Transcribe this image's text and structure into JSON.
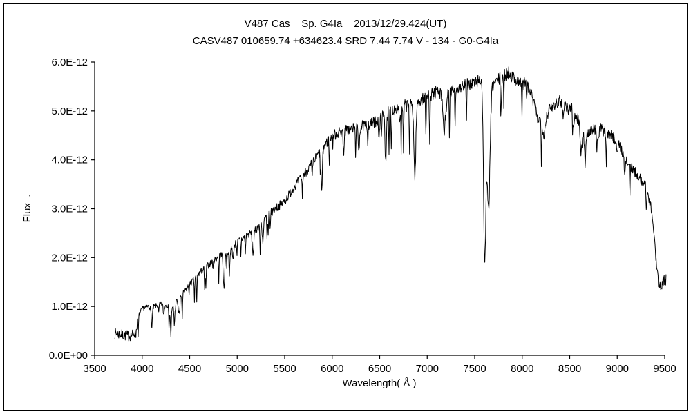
{
  "header": {
    "title": "V487 Cas    Sp. G4Ia    2013/12/29.424(UT)",
    "subtitle": "CASV487 010659.74 +634623.4 SRD 7.44 7.74 V - 134 - G0-G4Ia"
  },
  "chart_data": {
    "type": "line",
    "title": "V487 Cas    Sp. G4Ia    2013/12/29.424(UT)",
    "subtitle": "CASV487 010659.74 +634623.4 SRD 7.44 7.74 V - 134 - G0-G4Ia",
    "xlabel": "Wavelength( Å )",
    "ylabel": "Flux  .",
    "xlim": [
      3500,
      9500
    ],
    "ylim": [
      0,
      6e-12
    ],
    "grid": false,
    "legend": "none",
    "line_color": "#000000",
    "background": "#ffffff",
    "x_ticks": [
      3500,
      4000,
      4500,
      5000,
      5500,
      6000,
      6500,
      7000,
      7500,
      8000,
      8500,
      9000,
      9500
    ],
    "y_ticks": [
      [
        0,
        "0.0E+00"
      ],
      [
        1,
        "1.0E-12"
      ],
      [
        2,
        "2.0E-12"
      ],
      [
        3,
        "3.0E-12"
      ],
      [
        4,
        "4.0E-12"
      ],
      [
        5,
        "5.0E-12"
      ],
      [
        6,
        "6.0E-12"
      ]
    ],
    "flux_unit_scale": "values below are in units of 1E-12, matching the y-axis labels",
    "x_start": 3710,
    "x_end": 9520,
    "step": 4,
    "series": [
      {
        "name": "spectrum",
        "envelope_points": [
          [
            3710,
            0.45
          ],
          [
            3780,
            0.42
          ],
          [
            3850,
            0.4
          ],
          [
            3905,
            0.42
          ],
          [
            3930,
            0.55
          ],
          [
            3960,
            0.8
          ],
          [
            4000,
            0.95
          ],
          [
            4060,
            1.0
          ],
          [
            4130,
            1.0
          ],
          [
            4200,
            1.05
          ],
          [
            4270,
            1.02
          ],
          [
            4300,
            0.88
          ],
          [
            4330,
            1.05
          ],
          [
            4400,
            1.18
          ],
          [
            4500,
            1.45
          ],
          [
            4600,
            1.68
          ],
          [
            4700,
            1.85
          ],
          [
            4800,
            2.02
          ],
          [
            4900,
            2.12
          ],
          [
            5000,
            2.32
          ],
          [
            5100,
            2.45
          ],
          [
            5200,
            2.58
          ],
          [
            5300,
            2.82
          ],
          [
            5400,
            3.0
          ],
          [
            5500,
            3.15
          ],
          [
            5600,
            3.45
          ],
          [
            5700,
            3.7
          ],
          [
            5800,
            3.95
          ],
          [
            5900,
            4.25
          ],
          [
            6000,
            4.5
          ],
          [
            6100,
            4.58
          ],
          [
            6200,
            4.63
          ],
          [
            6300,
            4.68
          ],
          [
            6400,
            4.72
          ],
          [
            6500,
            4.85
          ],
          [
            6600,
            4.98
          ],
          [
            6700,
            5.08
          ],
          [
            6800,
            5.12
          ],
          [
            6900,
            5.18
          ],
          [
            7000,
            5.3
          ],
          [
            7100,
            5.38
          ],
          [
            7200,
            5.32
          ],
          [
            7300,
            5.45
          ],
          [
            7400,
            5.52
          ],
          [
            7500,
            5.58
          ],
          [
            7560,
            5.65
          ],
          [
            7700,
            5.55
          ],
          [
            7800,
            5.72
          ],
          [
            7860,
            5.78
          ],
          [
            7920,
            5.65
          ],
          [
            7980,
            5.58
          ],
          [
            8040,
            5.55
          ],
          [
            8100,
            5.32
          ],
          [
            8160,
            4.85
          ],
          [
            8220,
            4.78
          ],
          [
            8280,
            5.0
          ],
          [
            8340,
            5.15
          ],
          [
            8400,
            5.22
          ],
          [
            8460,
            5.12
          ],
          [
            8520,
            5.05
          ],
          [
            8570,
            4.92
          ],
          [
            8620,
            4.65
          ],
          [
            8660,
            4.45
          ],
          [
            8700,
            4.55
          ],
          [
            8760,
            4.62
          ],
          [
            8820,
            4.65
          ],
          [
            8880,
            4.55
          ],
          [
            8940,
            4.5
          ],
          [
            9000,
            4.38
          ],
          [
            9060,
            4.15
          ],
          [
            9120,
            3.9
          ],
          [
            9180,
            3.78
          ],
          [
            9240,
            3.62
          ],
          [
            9300,
            3.45
          ],
          [
            9350,
            3.1
          ],
          [
            9390,
            2.45
          ],
          [
            9420,
            1.75
          ],
          [
            9450,
            1.4
          ],
          [
            9480,
            1.5
          ],
          [
            9520,
            1.55
          ]
        ]
      }
    ],
    "absorption_lines": [
      [
        3933,
        0.15,
        8
      ],
      [
        4101,
        0.25,
        8
      ],
      [
        4227,
        0.2,
        6
      ],
      [
        4300,
        0.15,
        10
      ],
      [
        4340,
        0.3,
        7
      ],
      [
        4383,
        0.25,
        6
      ],
      [
        4861,
        0.75,
        7
      ],
      [
        4920,
        0.35,
        6
      ],
      [
        4957,
        0.3,
        5
      ],
      [
        5167,
        0.45,
        8
      ],
      [
        5270,
        0.4,
        7
      ],
      [
        5890,
        0.85,
        7
      ],
      [
        6122,
        0.4,
        6
      ],
      [
        6280,
        0.45,
        7
      ],
      [
        6495,
        0.4,
        6
      ],
      [
        6563,
        0.95,
        7
      ],
      [
        6710,
        0.3,
        5
      ],
      [
        6870,
        1.5,
        10
      ],
      [
        7180,
        0.65,
        15
      ],
      [
        7605,
        3.6,
        12
      ],
      [
        7645,
        2.6,
        16
      ],
      [
        8230,
        0.3,
        12
      ],
      [
        8430,
        0.25,
        8
      ],
      [
        8542,
        0.35,
        6
      ],
      [
        8620,
        0.55,
        8
      ],
      [
        8662,
        0.5,
        6
      ],
      [
        8800,
        0.3,
        6
      ],
      [
        9000,
        0.25,
        6
      ],
      [
        9080,
        0.3,
        8
      ]
    ],
    "noise": {
      "seed": 7,
      "base_amplitude": 0.035,
      "flux_amplitude_factor": 0.018,
      "blue_edge_extra": 0.07,
      "red_edge_extra": 0.06,
      "spike_probability_dense": 0.055,
      "spike_probability_mid": 0.03,
      "spike_probability_edge": 0.012,
      "spike_base": 0.25,
      "spike_flux_factor": 0.08
    }
  }
}
